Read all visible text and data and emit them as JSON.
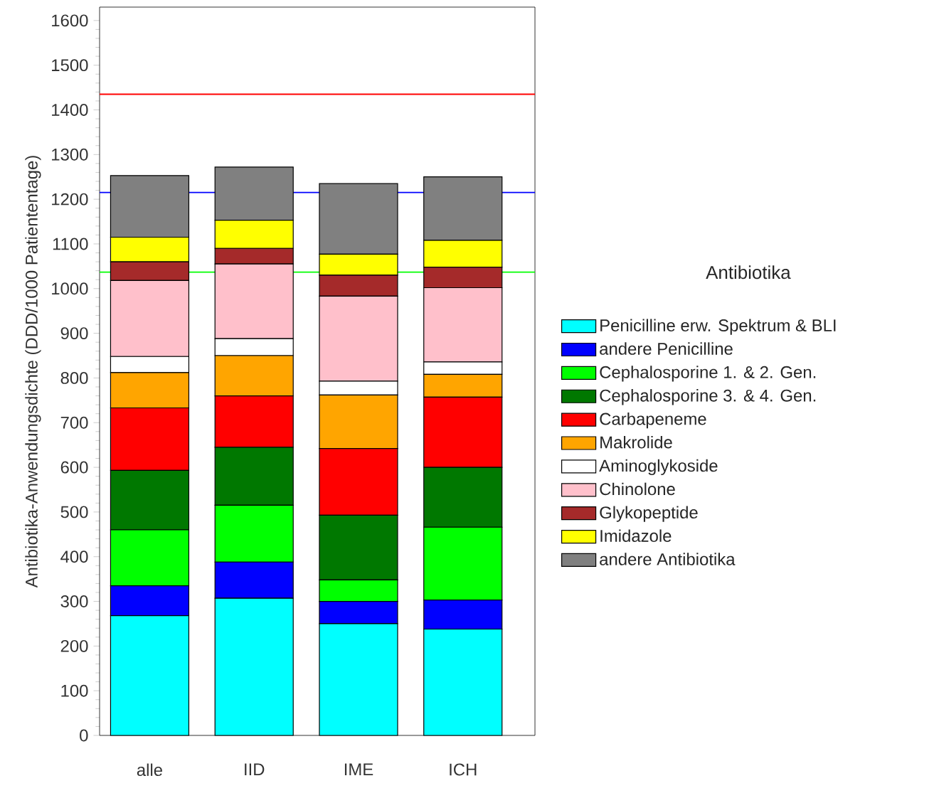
{
  "chart_data": {
    "type": "bar",
    "stacked": true,
    "ylabel": "Antibiotika-Anwendungsdichte (DDD/1000 Patiententage)",
    "legend_title": "Antibiotika",
    "legend": "right",
    "grid": false,
    "categories": [
      "alle",
      "IID",
      "IME",
      "ICH"
    ],
    "ylim": [
      0,
      1630
    ],
    "yticks": [
      0,
      100,
      200,
      300,
      400,
      500,
      600,
      700,
      800,
      900,
      1000,
      1100,
      1200,
      1300,
      1400,
      1500,
      1600
    ],
    "series": [
      {
        "name": "Penicilline erw. Spektrum & BLI",
        "color": "#00ffff",
        "values": [
          268,
          307,
          250,
          238
        ]
      },
      {
        "name": "andere Penicilline",
        "color": "#0000ff",
        "values": [
          67,
          81,
          50,
          65
        ]
      },
      {
        "name": "Cephalosporine 1. & 2. Gen.",
        "color": "#00ff00",
        "values": [
          125,
          127,
          48,
          163
        ]
      },
      {
        "name": "Cephalosporine 3. & 4. Gen.",
        "color": "#007800",
        "values": [
          133,
          130,
          145,
          134
        ]
      },
      {
        "name": "Carbapeneme",
        "color": "#ff0000",
        "values": [
          140,
          115,
          149,
          157
        ]
      },
      {
        "name": "Makrolide",
        "color": "#ffa500",
        "values": [
          79,
          90,
          120,
          51
        ]
      },
      {
        "name": "Aminoglykoside",
        "color": "#ffffff",
        "values": [
          36,
          38,
          31,
          28
        ]
      },
      {
        "name": "Chinolone",
        "color": "#ffc0cb",
        "values": [
          170,
          167,
          190,
          166
        ]
      },
      {
        "name": "Glykopeptide",
        "color": "#a52a2a",
        "values": [
          42,
          35,
          47,
          46
        ]
      },
      {
        "name": "Imidazole",
        "color": "#ffff00",
        "values": [
          55,
          63,
          47,
          60
        ]
      },
      {
        "name": "andere Antibiotika",
        "color": "#808080",
        "values": [
          138,
          119,
          158,
          142
        ]
      }
    ],
    "ref_lines": [
      {
        "axis": "y",
        "value": 1435,
        "color": "#ff0000"
      },
      {
        "axis": "y",
        "value": 1215,
        "color": "#0000ff"
      },
      {
        "axis": "y",
        "value": 1037,
        "color": "#00ff00"
      }
    ]
  }
}
